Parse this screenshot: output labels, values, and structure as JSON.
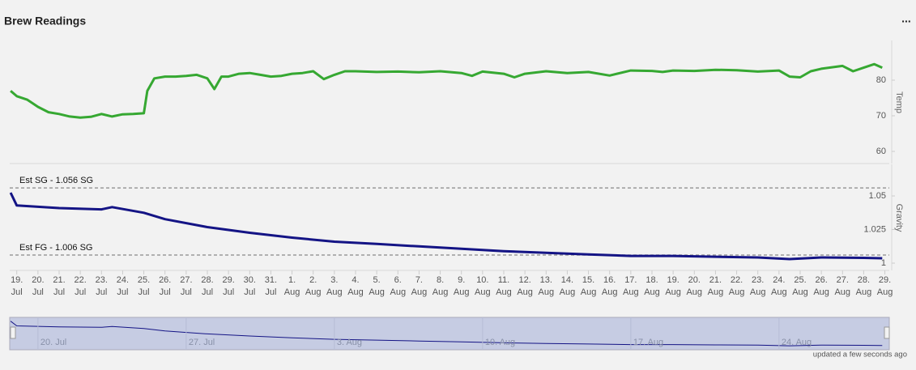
{
  "header": {
    "title": "Brew Readings",
    "menu": "..."
  },
  "chart_data": {
    "type": "line",
    "xlim": [
      "07-18 16:00",
      "08-29 05:00"
    ],
    "xticks": [
      {
        "value": "07-19",
        "day": "19.",
        "month": "Jul"
      },
      {
        "value": "07-20",
        "day": "20.",
        "month": "Jul"
      },
      {
        "value": "07-21",
        "day": "21.",
        "month": "Jul"
      },
      {
        "value": "07-22",
        "day": "22.",
        "month": "Jul"
      },
      {
        "value": "07-23",
        "day": "23.",
        "month": "Jul"
      },
      {
        "value": "07-24",
        "day": "24.",
        "month": "Jul"
      },
      {
        "value": "07-25",
        "day": "25.",
        "month": "Jul"
      },
      {
        "value": "07-26",
        "day": "26.",
        "month": "Jul"
      },
      {
        "value": "07-27",
        "day": "27.",
        "month": "Jul"
      },
      {
        "value": "07-28",
        "day": "28.",
        "month": "Jul"
      },
      {
        "value": "07-29",
        "day": "29.",
        "month": "Jul"
      },
      {
        "value": "07-30",
        "day": "30.",
        "month": "Jul"
      },
      {
        "value": "07-31",
        "day": "31.",
        "month": "Jul"
      },
      {
        "value": "08-01",
        "day": "1.",
        "month": "Aug"
      },
      {
        "value": "08-02",
        "day": "2.",
        "month": "Aug"
      },
      {
        "value": "08-03",
        "day": "3.",
        "month": "Aug"
      },
      {
        "value": "08-04",
        "day": "4.",
        "month": "Aug"
      },
      {
        "value": "08-05",
        "day": "5.",
        "month": "Aug"
      },
      {
        "value": "08-06",
        "day": "6.",
        "month": "Aug"
      },
      {
        "value": "08-07",
        "day": "7.",
        "month": "Aug"
      },
      {
        "value": "08-08",
        "day": "8.",
        "month": "Aug"
      },
      {
        "value": "08-09",
        "day": "9.",
        "month": "Aug"
      },
      {
        "value": "08-10",
        "day": "10.",
        "month": "Aug"
      },
      {
        "value": "08-11",
        "day": "11.",
        "month": "Aug"
      },
      {
        "value": "08-12",
        "day": "12.",
        "month": "Aug"
      },
      {
        "value": "08-13",
        "day": "13.",
        "month": "Aug"
      },
      {
        "value": "08-14",
        "day": "14.",
        "month": "Aug"
      },
      {
        "value": "08-15",
        "day": "15.",
        "month": "Aug"
      },
      {
        "value": "08-16",
        "day": "16.",
        "month": "Aug"
      },
      {
        "value": "08-17",
        "day": "17.",
        "month": "Aug"
      },
      {
        "value": "08-18",
        "day": "18.",
        "month": "Aug"
      },
      {
        "value": "08-19",
        "day": "19.",
        "month": "Aug"
      },
      {
        "value": "08-20",
        "day": "20.",
        "month": "Aug"
      },
      {
        "value": "08-21",
        "day": "21.",
        "month": "Aug"
      },
      {
        "value": "08-22",
        "day": "22.",
        "month": "Aug"
      },
      {
        "value": "08-23",
        "day": "23.",
        "month": "Aug"
      },
      {
        "value": "08-24",
        "day": "24.",
        "month": "Aug"
      },
      {
        "value": "08-25",
        "day": "25.",
        "month": "Aug"
      },
      {
        "value": "08-26",
        "day": "26.",
        "month": "Aug"
      },
      {
        "value": "08-27",
        "day": "27.",
        "month": "Aug"
      },
      {
        "value": "08-28",
        "day": "28.",
        "month": "Aug"
      },
      {
        "value": "08-29",
        "day": "29.",
        "month": "Aug"
      }
    ],
    "panes": [
      {
        "axis_title": "Temp",
        "ylim": [
          57.5,
          90
        ],
        "yticks": [
          60,
          70,
          80
        ],
        "series": [
          {
            "name": "Temp",
            "color": "#36a832",
            "x": [
              "07-18 17:00",
              "07-19 00:00",
              "07-19 12:00",
              "07-20 00:00",
              "07-20 12:00",
              "07-21 00:00",
              "07-21 12:00",
              "07-22 00:00",
              "07-22 12:00",
              "07-23 00:00",
              "07-23 12:00",
              "07-24 00:00",
              "07-24 12:00",
              "07-25 00:00",
              "07-25 04:00",
              "07-25 12:00",
              "07-26 00:00",
              "07-26 12:00",
              "07-27 00:00",
              "07-27 12:00",
              "07-28 00:00",
              "07-28 08:00",
              "07-28 16:00",
              "07-29 00:00",
              "07-29 12:00",
              "07-30 00:00",
              "07-30 12:00",
              "07-31 00:00",
              "07-31 12:00",
              "08-01 00:00",
              "08-01 12:00",
              "08-02 00:00",
              "08-02 12:00",
              "08-03 00:00",
              "08-03 12:00",
              "08-04 00:00",
              "08-05 00:00",
              "08-06 00:00",
              "08-07 00:00",
              "08-08 00:00",
              "08-09 00:00",
              "08-09 12:00",
              "08-10 00:00",
              "08-11 00:00",
              "08-11 12:00",
              "08-12 00:00",
              "08-13 00:00",
              "08-14 00:00",
              "08-15 00:00",
              "08-16 00:00",
              "08-17 00:00",
              "08-18 00:00",
              "08-18 12:00",
              "08-19 00:00",
              "08-20 00:00",
              "08-21 00:00",
              "08-22 00:00",
              "08-23 00:00",
              "08-24 00:00",
              "08-24 12:00",
              "08-25 00:00",
              "08-25 12:00",
              "08-26 00:00",
              "08-27 00:00",
              "08-27 12:00",
              "08-28 00:00",
              "08-28 12:00",
              "08-28 21:00"
            ],
            "values": [
              77,
              75.5,
              74.5,
              72.5,
              71,
              70.5,
              69.8,
              69.5,
              69.7,
              70.5,
              69.8,
              70.4,
              70.5,
              70.7,
              77,
              80.5,
              81,
              81,
              81.2,
              81.5,
              80.5,
              77.5,
              81,
              81,
              81.8,
              82,
              81.5,
              81,
              81.2,
              81.8,
              82,
              82.5,
              80.3,
              81.5,
              82.5,
              82.5,
              82.3,
              82.4,
              82.2,
              82.5,
              82,
              81.2,
              82.4,
              81.8,
              80.8,
              81.8,
              82.5,
              82,
              82.3,
              81.3,
              82.7,
              82.6,
              82.3,
              82.7,
              82.6,
              82.9,
              82.8,
              82.4,
              82.7,
              81,
              80.8,
              82.5,
              83.2,
              84,
              82.5,
              83.5,
              84.5,
              83.5
            ]
          }
        ]
      },
      {
        "axis_title": "Gravity",
        "ylim": [
          0.997,
          1.0705
        ],
        "yticks": [
          1,
          1.025,
          1.05
        ],
        "plot_lines": [
          {
            "value": 1.056,
            "label": "Est SG - 1.056 SG"
          },
          {
            "value": 1.006,
            "label": "Est FG - 1.006 SG"
          }
        ],
        "series": [
          {
            "name": "Gravity",
            "color": "#141485",
            "x": [
              "07-18 17:00",
              "07-19 00:00",
              "07-21 00:00",
              "07-23 00:00",
              "07-23 12:00",
              "07-25 00:00",
              "07-26 00:00",
              "07-28 00:00",
              "07-30 00:00",
              "08-01 00:00",
              "08-03 00:00",
              "08-05 00:00",
              "08-07 00:00",
              "08-09 00:00",
              "08-11 00:00",
              "08-13 00:00",
              "08-15 00:00",
              "08-17 00:00",
              "08-19 00:00",
              "08-21 00:00",
              "08-23 00:00",
              "08-24 12:00",
              "08-26 00:00",
              "08-28 00:00",
              "08-28 21:00"
            ],
            "values": [
              1.0524,
              1.0429,
              1.041,
              1.04,
              1.0417,
              1.0375,
              1.0327,
              1.0268,
              1.0226,
              1.019,
              1.016,
              1.0143,
              1.0125,
              1.0107,
              1.0089,
              1.0077,
              1.0065,
              1.0054,
              1.0054,
              1.0048,
              1.0042,
              1.003,
              1.0042,
              1.0039,
              1.0036
            ]
          }
        ]
      }
    ],
    "navigator": {
      "ylim": [
        0.995,
        1.06
      ],
      "xticks": [
        {
          "value": "07-20",
          "label": "20. Jul"
        },
        {
          "value": "07-27",
          "label": "27. Jul"
        },
        {
          "value": "08-03",
          "label": "3. Aug"
        },
        {
          "value": "08-10",
          "label": "10. Aug"
        },
        {
          "value": "08-17",
          "label": "17. Aug"
        },
        {
          "value": "08-24",
          "label": "24. Aug"
        }
      ]
    },
    "footer": "updated a few seconds ago"
  }
}
